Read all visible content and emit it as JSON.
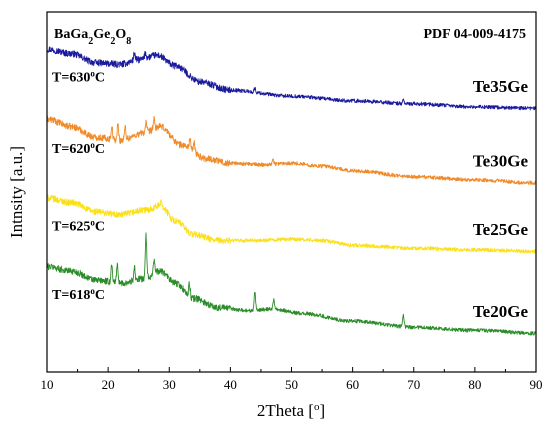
{
  "chart_data": {
    "type": "line",
    "xlabel": "2Theta [°]",
    "ylabel": "Intnsity [a.u.]",
    "xlim": [
      10,
      90
    ],
    "x_ticks": [
      "10",
      "20",
      "30",
      "40",
      "50",
      "60",
      "70",
      "80",
      "90"
    ],
    "y_ticks_visible": false,
    "annotations": {
      "phase": "BaGa2Ge2O8",
      "pdf": "PDF 04-009-4175"
    },
    "series": [
      {
        "name": "Te35Ge",
        "temperature": "T=630°C",
        "color": "#1a1a9c",
        "offset": 3.0,
        "points": [
          [
            10,
            0.88
          ],
          [
            14,
            0.82
          ],
          [
            18,
            0.7
          ],
          [
            22,
            0.68
          ],
          [
            25,
            0.74
          ],
          [
            28,
            0.8
          ],
          [
            31,
            0.66
          ],
          [
            35,
            0.45
          ],
          [
            40,
            0.34
          ],
          [
            50,
            0.26
          ],
          [
            60,
            0.2
          ],
          [
            70,
            0.16
          ],
          [
            80,
            0.12
          ],
          [
            90,
            0.1
          ]
        ],
        "peaks": [
          [
            24.3,
            0.1
          ],
          [
            26.1,
            0.08
          ],
          [
            44.0,
            0.05
          ],
          [
            68.3,
            0.05
          ]
        ]
      },
      {
        "name": "Te30Ge",
        "temperature": "T=620°C",
        "color": "#f08a28",
        "offset": 2.0,
        "points": [
          [
            10,
            0.96
          ],
          [
            14,
            0.86
          ],
          [
            18,
            0.72
          ],
          [
            22,
            0.68
          ],
          [
            26,
            0.78
          ],
          [
            28.5,
            0.86
          ],
          [
            32,
            0.62
          ],
          [
            36,
            0.44
          ],
          [
            40,
            0.38
          ],
          [
            45,
            0.36
          ],
          [
            50,
            0.38
          ],
          [
            55,
            0.34
          ],
          [
            60,
            0.28
          ],
          [
            70,
            0.2
          ],
          [
            80,
            0.16
          ],
          [
            90,
            0.12
          ]
        ],
        "peaks": [
          [
            20.6,
            0.18
          ],
          [
            21.6,
            0.2
          ],
          [
            22.8,
            0.16
          ],
          [
            26.2,
            0.14
          ],
          [
            27.5,
            0.12
          ],
          [
            33.4,
            0.14
          ],
          [
            34.1,
            0.12
          ],
          [
            47.0,
            0.06
          ]
        ]
      },
      {
        "name": "Te25Ge",
        "temperature": "T=625°C",
        "color": "#fae01c",
        "offset": 1.0,
        "points": [
          [
            10,
            0.92
          ],
          [
            14,
            0.86
          ],
          [
            18,
            0.74
          ],
          [
            22,
            0.7
          ],
          [
            26,
            0.76
          ],
          [
            28.5,
            0.82
          ],
          [
            31,
            0.62
          ],
          [
            34,
            0.44
          ],
          [
            38,
            0.36
          ],
          [
            44,
            0.36
          ],
          [
            50,
            0.38
          ],
          [
            55,
            0.36
          ],
          [
            60,
            0.3
          ],
          [
            70,
            0.26
          ],
          [
            80,
            0.24
          ],
          [
            90,
            0.22
          ]
        ],
        "peaks": [
          [
            28.7,
            0.08
          ]
        ]
      },
      {
        "name": "Te20Ge",
        "temperature": "T=618°C",
        "color": "#2a8c28",
        "offset": 0.0,
        "points": [
          [
            10,
            1.02
          ],
          [
            14,
            0.96
          ],
          [
            18,
            0.84
          ],
          [
            22,
            0.8
          ],
          [
            26,
            0.86
          ],
          [
            28.5,
            0.96
          ],
          [
            31,
            0.8
          ],
          [
            34,
            0.6
          ],
          [
            38,
            0.48
          ],
          [
            43,
            0.44
          ],
          [
            47,
            0.46
          ],
          [
            52,
            0.4
          ],
          [
            60,
            0.3
          ],
          [
            70,
            0.22
          ],
          [
            80,
            0.18
          ],
          [
            90,
            0.14
          ]
        ],
        "peaks": [
          [
            20.6,
            0.24
          ],
          [
            21.5,
            0.26
          ],
          [
            24.3,
            0.18
          ],
          [
            26.2,
            0.56
          ],
          [
            27.5,
            0.2
          ],
          [
            33.3,
            0.16
          ],
          [
            44.0,
            0.24
          ],
          [
            47.1,
            0.12
          ],
          [
            68.3,
            0.16
          ]
        ]
      }
    ]
  }
}
